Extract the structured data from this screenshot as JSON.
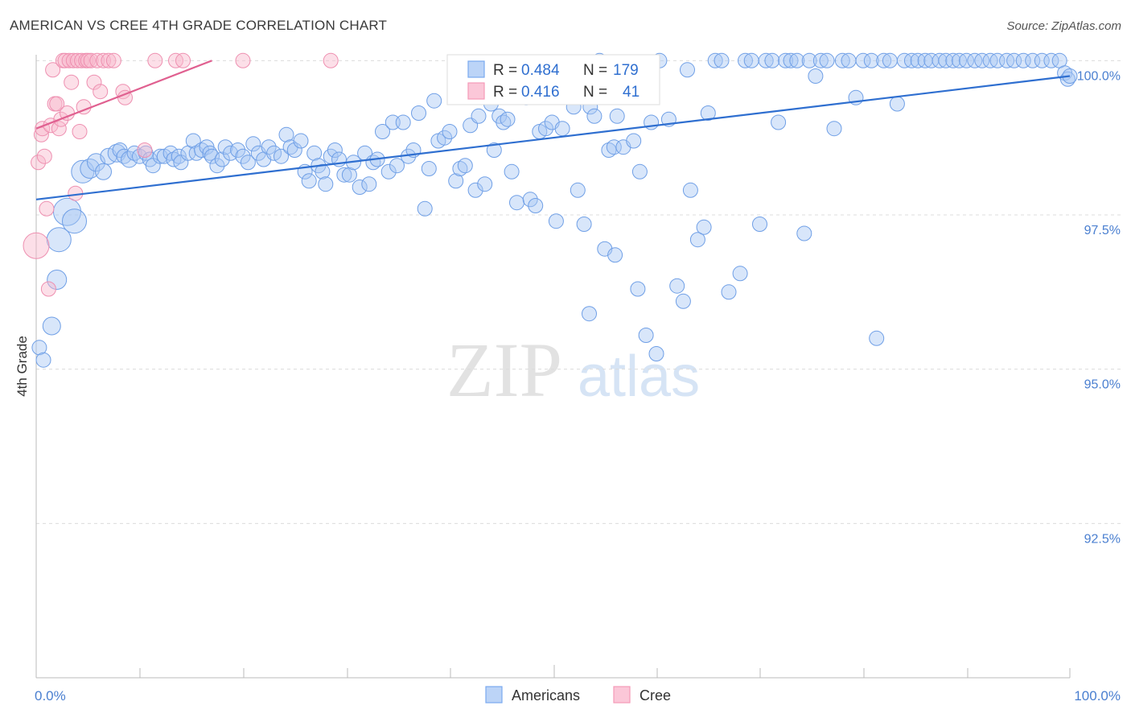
{
  "header": {
    "title": "AMERICAN VS CREE 4TH GRADE CORRELATION CHART",
    "source": "Source: ZipAtlas.com"
  },
  "watermark": {
    "zip": "ZIP",
    "atlas": "atlas"
  },
  "legend_top": {
    "rows": [
      {
        "r_label": "R =",
        "r_value": "0.484",
        "n_label": "N =",
        "n_value": "179",
        "color": "#7aaaf0"
      },
      {
        "r_label": "R =",
        "r_value": "0.416",
        "n_label": "N =",
        "n_value": "41",
        "color": "#f59ab8"
      }
    ]
  },
  "legend_bottom": {
    "items": [
      {
        "label": "Americans",
        "color": "#7aaaf0"
      },
      {
        "label": "Cree",
        "color": "#f59ab8"
      }
    ]
  },
  "chart_data": {
    "type": "scatter",
    "title": "AMERICAN VS CREE 4TH GRADE CORRELATION CHART",
    "xlabel": "",
    "ylabel": "4th Grade",
    "xlim": [
      0,
      100
    ],
    "ylim": [
      90.0,
      100.2
    ],
    "x_tick_labels": [
      "0.0%",
      "100.0%"
    ],
    "y_ticks": [
      92.5,
      95.0,
      97.5,
      100.0
    ],
    "y_tick_labels": [
      "92.5%",
      "95.0%",
      "97.5%",
      "100.0%"
    ],
    "grid": "horizontal dashed",
    "legend_position": "top-center",
    "series": [
      {
        "name": "Americans",
        "color": "#7aaaf0",
        "line_color": "#2f6fd0",
        "trend": {
          "x": [
            0,
            100
          ],
          "y": [
            97.75,
            99.75
          ]
        },
        "points": [
          [
            0.3,
            95.35,
            9
          ],
          [
            0.7,
            95.15,
            9
          ],
          [
            1.5,
            95.7,
            11
          ],
          [
            2.0,
            96.45,
            12
          ],
          [
            2.2,
            97.1,
            15
          ],
          [
            3.0,
            97.55,
            17
          ],
          [
            3.7,
            97.4,
            15
          ],
          [
            4.5,
            98.2,
            14
          ],
          [
            5.2,
            98.25,
            12
          ],
          [
            5.8,
            98.35,
            11
          ],
          [
            6.5,
            98.2,
            10
          ],
          [
            7.0,
            98.45,
            10
          ],
          [
            7.8,
            98.5,
            11
          ],
          [
            8.1,
            98.55,
            9
          ],
          [
            8.5,
            98.45,
            9
          ],
          [
            9.0,
            98.4,
            10
          ],
          [
            9.5,
            98.5,
            9
          ],
          [
            10.0,
            98.45,
            9
          ],
          [
            10.6,
            98.5,
            9
          ],
          [
            11.0,
            98.4,
            9
          ],
          [
            11.3,
            98.3,
            9
          ],
          [
            12.0,
            98.45,
            9
          ],
          [
            12.4,
            98.45,
            9
          ],
          [
            13.0,
            98.5,
            9
          ],
          [
            13.3,
            98.4,
            9
          ],
          [
            13.8,
            98.45,
            9
          ],
          [
            14.0,
            98.35,
            9
          ],
          [
            14.7,
            98.5,
            9
          ],
          [
            15.2,
            98.7,
            9
          ],
          [
            15.5,
            98.5,
            9
          ],
          [
            16.0,
            98.55,
            9
          ],
          [
            16.5,
            98.6,
            9
          ],
          [
            16.8,
            98.5,
            9
          ],
          [
            17.0,
            98.45,
            9
          ],
          [
            17.5,
            98.3,
            9
          ],
          [
            18.0,
            98.4,
            9
          ],
          [
            18.3,
            98.6,
            9
          ],
          [
            18.8,
            98.5,
            9
          ],
          [
            19.5,
            98.55,
            9
          ],
          [
            20.0,
            98.45,
            9
          ],
          [
            20.5,
            98.35,
            9
          ],
          [
            21.0,
            98.65,
            9
          ],
          [
            21.5,
            98.5,
            9
          ],
          [
            22.0,
            98.4,
            9
          ],
          [
            22.5,
            98.6,
            9
          ],
          [
            23.0,
            98.5,
            9
          ],
          [
            23.7,
            98.45,
            9
          ],
          [
            24.2,
            98.8,
            9
          ],
          [
            24.6,
            98.6,
            9
          ],
          [
            25.0,
            98.55,
            9
          ],
          [
            25.6,
            98.7,
            9
          ],
          [
            26.0,
            98.2,
            9
          ],
          [
            26.4,
            98.05,
            9
          ],
          [
            26.9,
            98.5,
            9
          ],
          [
            27.3,
            98.3,
            9
          ],
          [
            27.7,
            98.2,
            9
          ],
          [
            28.0,
            98.0,
            9
          ],
          [
            28.5,
            98.45,
            9
          ],
          [
            28.9,
            98.55,
            9
          ],
          [
            29.3,
            98.4,
            9
          ],
          [
            29.8,
            98.15,
            9
          ],
          [
            30.3,
            98.15,
            9
          ],
          [
            30.7,
            98.35,
            9
          ],
          [
            31.3,
            97.95,
            9
          ],
          [
            31.8,
            98.5,
            9
          ],
          [
            32.2,
            98.0,
            9
          ],
          [
            32.6,
            98.35,
            9
          ],
          [
            33.0,
            98.4,
            9
          ],
          [
            33.5,
            98.85,
            9
          ],
          [
            34.1,
            98.2,
            9
          ],
          [
            34.5,
            99.0,
            9
          ],
          [
            34.9,
            98.3,
            9
          ],
          [
            35.5,
            99.0,
            9
          ],
          [
            36.0,
            98.45,
            9
          ],
          [
            36.5,
            98.55,
            9
          ],
          [
            37.0,
            99.15,
            9
          ],
          [
            37.6,
            97.6,
            9
          ],
          [
            38.0,
            98.25,
            9
          ],
          [
            38.5,
            99.35,
            9
          ],
          [
            38.9,
            98.7,
            9
          ],
          [
            39.5,
            98.75,
            9
          ],
          [
            40.0,
            98.85,
            9
          ],
          [
            40.6,
            98.05,
            9
          ],
          [
            41.0,
            98.25,
            9
          ],
          [
            41.5,
            98.3,
            9
          ],
          [
            42.0,
            98.95,
            9
          ],
          [
            42.5,
            97.9,
            9
          ],
          [
            42.8,
            99.1,
            9
          ],
          [
            43.4,
            98.0,
            9
          ],
          [
            44.0,
            99.3,
            9
          ],
          [
            44.3,
            98.55,
            9
          ],
          [
            44.8,
            99.1,
            9
          ],
          [
            45.2,
            99.0,
            9
          ],
          [
            45.6,
            99.05,
            9
          ],
          [
            46.0,
            98.2,
            9
          ],
          [
            46.5,
            97.7,
            9
          ],
          [
            47.0,
            99.5,
            9
          ],
          [
            47.4,
            99.4,
            9
          ],
          [
            47.8,
            97.75,
            9
          ],
          [
            48.3,
            97.65,
            9
          ],
          [
            48.7,
            98.85,
            9
          ],
          [
            49.3,
            98.9,
            9
          ],
          [
            49.9,
            99.0,
            9
          ],
          [
            50.3,
            97.4,
            9
          ],
          [
            50.9,
            98.9,
            9
          ],
          [
            51.4,
            99.55,
            9
          ],
          [
            52.0,
            99.25,
            9
          ],
          [
            52.4,
            97.9,
            9
          ],
          [
            53.0,
            97.35,
            9
          ],
          [
            53.6,
            99.25,
            9
          ],
          [
            54.0,
            99.1,
            9
          ],
          [
            54.5,
            100.0,
            9
          ],
          [
            55.0,
            96.95,
            9
          ],
          [
            55.4,
            98.55,
            9
          ],
          [
            55.9,
            98.6,
            9
          ],
          [
            56.2,
            99.1,
            9
          ],
          [
            56.8,
            98.6,
            9
          ],
          [
            57.2,
            99.5,
            9
          ],
          [
            57.8,
            98.7,
            9
          ],
          [
            58.4,
            98.2,
            9
          ],
          [
            59.0,
            95.55,
            9
          ],
          [
            59.5,
            99.0,
            9
          ],
          [
            60.3,
            100.0,
            9
          ],
          [
            61.2,
            99.05,
            9
          ],
          [
            62.0,
            96.35,
            9
          ],
          [
            62.6,
            96.1,
            9
          ],
          [
            63.0,
            99.85,
            9
          ],
          [
            63.3,
            97.9,
            9
          ],
          [
            64.0,
            97.1,
            9
          ],
          [
            64.6,
            97.3,
            9
          ],
          [
            65.0,
            99.15,
            9
          ],
          [
            65.7,
            100.0,
            9
          ],
          [
            66.3,
            100.0,
            9
          ],
          [
            67.0,
            96.25,
            9
          ],
          [
            68.1,
            96.55,
            9
          ],
          [
            68.6,
            100.0,
            9
          ],
          [
            69.2,
            100.0,
            9
          ],
          [
            70.0,
            97.35,
            9
          ],
          [
            70.6,
            100.0,
            9
          ],
          [
            71.2,
            100.0,
            9
          ],
          [
            71.8,
            99.0,
            9
          ],
          [
            72.5,
            100.0,
            9
          ],
          [
            73.0,
            100.0,
            9
          ],
          [
            73.6,
            100.0,
            9
          ],
          [
            74.3,
            97.2,
            9
          ],
          [
            74.8,
            100.0,
            9
          ],
          [
            75.4,
            99.75,
            9
          ],
          [
            75.9,
            100.0,
            9
          ],
          [
            76.5,
            100.0,
            9
          ],
          [
            77.2,
            98.9,
            9
          ],
          [
            78.0,
            100.0,
            9
          ],
          [
            78.6,
            100.0,
            9
          ],
          [
            79.3,
            99.4,
            9
          ],
          [
            80.0,
            100.0,
            9
          ],
          [
            80.8,
            100.0,
            9
          ],
          [
            81.3,
            95.5,
            9
          ],
          [
            82.0,
            100.0,
            9
          ],
          [
            82.6,
            100.0,
            9
          ],
          [
            83.3,
            99.3,
            9
          ],
          [
            84.0,
            100.0,
            9
          ],
          [
            84.7,
            100.0,
            9
          ],
          [
            85.3,
            100.0,
            9
          ],
          [
            86.0,
            100.0,
            9
          ],
          [
            86.6,
            100.0,
            9
          ],
          [
            87.4,
            100.0,
            9
          ],
          [
            88.0,
            100.0,
            9
          ],
          [
            88.7,
            100.0,
            9
          ],
          [
            89.3,
            100.0,
            9
          ],
          [
            90.0,
            100.0,
            9
          ],
          [
            90.8,
            100.0,
            9
          ],
          [
            91.5,
            100.0,
            9
          ],
          [
            92.3,
            100.0,
            9
          ],
          [
            93.0,
            100.0,
            9
          ],
          [
            93.9,
            100.0,
            9
          ],
          [
            94.6,
            100.0,
            9
          ],
          [
            95.5,
            100.0,
            9
          ],
          [
            96.4,
            100.0,
            9
          ],
          [
            97.3,
            100.0,
            9
          ],
          [
            98.2,
            100.0,
            9
          ],
          [
            99.0,
            100.0,
            9
          ],
          [
            99.5,
            99.8,
            9
          ],
          [
            99.8,
            99.7,
            9
          ],
          [
            100.0,
            99.75,
            9
          ],
          [
            60.0,
            95.25,
            9
          ],
          [
            58.2,
            96.3,
            9
          ],
          [
            56.0,
            96.85,
            9
          ],
          [
            53.5,
            95.9,
            9
          ]
        ]
      },
      {
        "name": "Cree",
        "color": "#f59ab8",
        "line_color": "#e06090",
        "trend": {
          "x": [
            0,
            17.0
          ],
          "y": [
            98.9,
            100.0
          ]
        },
        "points": [
          [
            0.0,
            97.0,
            16
          ],
          [
            0.2,
            98.35,
            9
          ],
          [
            0.5,
            98.8,
            9
          ],
          [
            0.6,
            98.9,
            9
          ],
          [
            0.8,
            98.45,
            9
          ],
          [
            1.0,
            97.6,
            9
          ],
          [
            1.2,
            96.3,
            9
          ],
          [
            1.4,
            98.95,
            9
          ],
          [
            1.6,
            99.85,
            9
          ],
          [
            1.8,
            99.3,
            9
          ],
          [
            2.0,
            99.3,
            9
          ],
          [
            2.2,
            98.9,
            9
          ],
          [
            2.4,
            99.05,
            9
          ],
          [
            2.6,
            100.0,
            9
          ],
          [
            2.8,
            100.0,
            9
          ],
          [
            3.0,
            99.15,
            9
          ],
          [
            3.2,
            100.0,
            9
          ],
          [
            3.4,
            99.65,
            9
          ],
          [
            3.6,
            100.0,
            9
          ],
          [
            3.8,
            97.85,
            9
          ],
          [
            4.0,
            100.0,
            9
          ],
          [
            4.2,
            98.85,
            9
          ],
          [
            4.4,
            100.0,
            9
          ],
          [
            4.6,
            99.25,
            9
          ],
          [
            4.8,
            100.0,
            9
          ],
          [
            5.0,
            100.0,
            9
          ],
          [
            5.3,
            100.0,
            9
          ],
          [
            5.6,
            99.65,
            9
          ],
          [
            5.9,
            100.0,
            9
          ],
          [
            6.2,
            99.5,
            9
          ],
          [
            6.5,
            100.0,
            9
          ],
          [
            7.0,
            100.0,
            9
          ],
          [
            7.5,
            100.0,
            9
          ],
          [
            8.4,
            99.5,
            9
          ],
          [
            8.6,
            99.4,
            9
          ],
          [
            10.5,
            98.55,
            9
          ],
          [
            11.5,
            100.0,
            9
          ],
          [
            13.5,
            100.0,
            9
          ],
          [
            14.2,
            100.0,
            9
          ],
          [
            20.0,
            100.0,
            9
          ],
          [
            28.5,
            100.0,
            9
          ]
        ]
      }
    ]
  }
}
